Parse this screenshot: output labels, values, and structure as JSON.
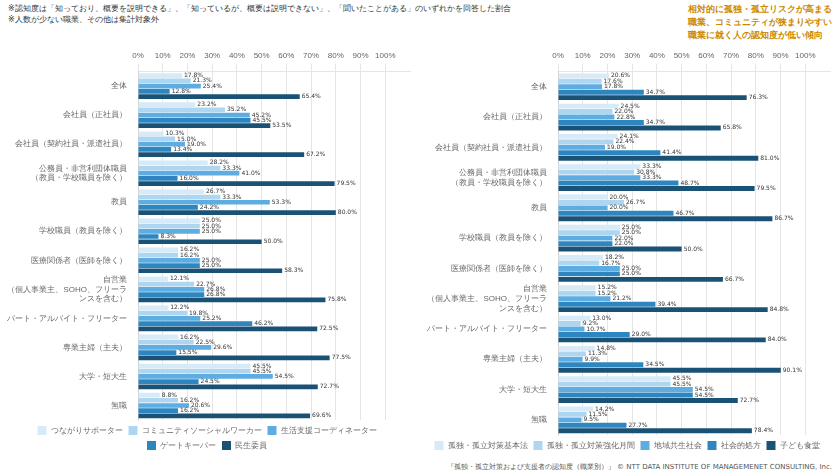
{
  "chart_data": [
    {
      "type": "bar",
      "orientation": "horizontal",
      "categories": [
        "全体",
        "会社員（正社員）",
        "会社員（契約社員・派遣社員）",
        "公務員・非営利団体職員（教員・学校職員を除く）",
        "教員",
        "学校職員（教員を除く）",
        "医療関係者（医師を除く）",
        "自営業（個人事業主、SOHO、フリーランスを含む）",
        "パート・アルバイト・フリーター",
        "専業主婦（主夫）",
        "大学・短大生",
        "無職"
      ],
      "series": [
        {
          "name": "つながりサポーター",
          "color": "#d6eaf8",
          "values": [
            17.8,
            23.2,
            10.3,
            28.2,
            26.7,
            25.0,
            16.2,
            12.1,
            12.2,
            16.2,
            45.5,
            8.8
          ],
          "value_labels": [
            "17.8%",
            "23.2%",
            "10.3%",
            "28.2%",
            "26.7%",
            "25.0%",
            "16.2%",
            "12.1%",
            "12.2%",
            "16.2%",
            "45.5%",
            "8.8%"
          ]
        },
        {
          "name": "コミュニティソーシャルワーカー",
          "color": "#aed6f1",
          "values": [
            21.3,
            35.2,
            15.0,
            33.3,
            33.3,
            25.0,
            16.2,
            22.7,
            19.8,
            22.5,
            45.5,
            16.2
          ],
          "value_labels": [
            "21.3%",
            "35.2%",
            "15.0%",
            "33.3%",
            "33.3%",
            "25.0%",
            "16.2%",
            "22.7%",
            "19.8%",
            "22.5%",
            "45.5%",
            "16.2%"
          ]
        },
        {
          "name": "生活支援コーディネーター",
          "color": "#5dade2",
          "values": [
            25.4,
            45.2,
            19.0,
            41.0,
            53.3,
            25.0,
            25.0,
            26.8,
            25.2,
            29.6,
            54.5,
            20.6
          ],
          "value_labels": [
            "25.4%",
            "45.2%",
            "19.0%",
            "41.0%",
            "53.3%",
            "25.0%",
            "25.0%",
            "26.8%",
            "25.2%",
            "29.6%",
            "54.5%",
            "20.6%"
          ]
        },
        {
          "name": "ゲートキーパー",
          "color": "#2e86c1",
          "values": [
            12.8,
            45.5,
            13.4,
            16.0,
            24.2,
            8.3,
            25.0,
            26.8,
            46.2,
            15.5,
            24.5,
            16.2
          ],
          "value_labels": [
            "12.8%",
            "45.5%",
            "13.4%",
            "16.0%",
            "24.2%",
            "8.3%",
            "25.0%",
            "26.8%",
            "46.2%",
            "15.5%",
            "24.5%",
            "16.2%"
          ]
        },
        {
          "name": "民生委員",
          "color": "#1a5276",
          "values": [
            65.4,
            53.5,
            67.2,
            79.5,
            80.0,
            50.0,
            58.3,
            75.8,
            72.5,
            77.5,
            72.7,
            69.6
          ],
          "value_labels": [
            "65.4%",
            "53.5%",
            "67.2%",
            "79.5%",
            "80.0%",
            "50.0%",
            "58.3%",
            "75.8%",
            "72.5%",
            "77.5%",
            "72.7%",
            "69.6%"
          ]
        }
      ],
      "xlim": [
        0,
        110
      ],
      "xticks": [
        {
          "value": 0,
          "label": "0%"
        },
        {
          "value": 10,
          "label": "10%"
        },
        {
          "value": 20,
          "label": "20%"
        },
        {
          "value": 30,
          "label": "30%"
        },
        {
          "value": 40,
          "label": "40%"
        },
        {
          "value": 50,
          "label": "50%"
        },
        {
          "value": 60,
          "label": "60%"
        },
        {
          "value": 70,
          "label": "70%"
        },
        {
          "value": 80,
          "label": "80%"
        },
        {
          "value": 90,
          "label": "90%"
        },
        {
          "value": 100,
          "label": "100%"
        }
      ],
      "grid": true,
      "legend": "bottom",
      "data_labels": true,
      "annotations": [
        "※認知度は「知っており、概要を説明できる」、「知っているが、概要は説明できない」、「聞いたことがある」のいずれかを回答した割合",
        "※人数が少ない職業、その他は集計対象外",
        "相対的に孤独・孤立リスクが高まる\n職業、コミュニティが狭まりやすい\n職業に就く人の認知度が低い傾向",
        "『孤独・孤立対策および支援者の認知度（職業別）』 © NTT DATA INSTITUTE OF MANAGEMENET CONSULTING, Inc."
      ]
    },
    {
      "type": "bar",
      "orientation": "horizontal",
      "categories": [
        "全体",
        "会社員（正社員）",
        "会社員（契約社員・派遣社員）",
        "公務員・非営利団体職員（教員・学校職員を除く）",
        "教員",
        "学校職員（教員を除く）",
        "医療関係者（医師を除く）",
        "自営業（個人事業主、SOHO、フリーランスを含む）",
        "パート・アルバイト・フリーター",
        "専業主婦（主夫）",
        "大学・短大生",
        "無職"
      ],
      "series": [
        {
          "name": "孤独・孤立対策基本法",
          "color": "#d6eaf8",
          "values": [
            20.6,
            24.5,
            24.1,
            33.3,
            20.0,
            25.0,
            18.2,
            15.2,
            13.0,
            14.8,
            45.5,
            14.2
          ],
          "value_labels": [
            "20.6%",
            "24.5%",
            "24.1%",
            "33.3%",
            "20.0%",
            "25.0%",
            "18.2%",
            "15.2%",
            "13.0%",
            "14.8%",
            "45.5%",
            "14.2%"
          ]
        },
        {
          "name": "孤独・孤立対策強化月間",
          "color": "#aed6f1",
          "values": [
            17.6,
            22.0,
            22.4,
            30.8,
            26.7,
            25.0,
            16.7,
            15.2,
            9.2,
            11.3,
            45.5,
            11.5
          ],
          "value_labels": [
            "17.6%",
            "22.0%",
            "22.4%",
            "30.8%",
            "26.7%",
            "25.0%",
            "16.7%",
            "15.2%",
            "9.2%",
            "11.3%",
            "45.5%",
            "11.5%"
          ]
        },
        {
          "name": "地域共生社会",
          "color": "#5dade2",
          "values": [
            17.8,
            22.8,
            19.0,
            33.3,
            20.0,
            22.0,
            25.0,
            21.2,
            10.7,
            9.9,
            54.5,
            9.5
          ],
          "value_labels": [
            "17.8%",
            "22.8%",
            "19.0%",
            "33.3%",
            "20.0%",
            "22.0%",
            "25.0%",
            "21.2%",
            "10.7%",
            "9.9%",
            "54.5%",
            "9.5%"
          ]
        },
        {
          "name": "社会的処方",
          "color": "#2e86c1",
          "values": [
            34.7,
            34.7,
            41.4,
            48.7,
            46.7,
            22.0,
            25.0,
            39.4,
            29.0,
            34.5,
            54.5,
            27.7
          ],
          "value_labels": [
            "34.7%",
            "34.7%",
            "41.4%",
            "48.7%",
            "46.7%",
            "22.0%",
            "25.0%",
            "39.4%",
            "29.0%",
            "34.5%",
            "54.5%",
            "27.7%"
          ]
        },
        {
          "name": "子ども食堂",
          "color": "#1a5276",
          "values": [
            76.3,
            65.8,
            81.0,
            79.5,
            86.7,
            50.0,
            66.7,
            84.8,
            84.0,
            90.1,
            72.7,
            78.4
          ],
          "value_labels": [
            "76.3%",
            "65.8%",
            "81.0%",
            "79.5%",
            "86.7%",
            "50.0%",
            "66.7%",
            "84.8%",
            "84.0%",
            "90.1%",
            "72.7%",
            "78.4%"
          ]
        }
      ],
      "xlim": [
        0,
        110
      ],
      "xticks": [
        {
          "value": 0,
          "label": "0%"
        },
        {
          "value": 10,
          "label": "10%"
        },
        {
          "value": 20,
          "label": "20%"
        },
        {
          "value": 30,
          "label": "30%"
        },
        {
          "value": 40,
          "label": "40%"
        },
        {
          "value": 50,
          "label": "50%"
        },
        {
          "value": 60,
          "label": "60%"
        },
        {
          "value": 70,
          "label": "70%"
        },
        {
          "value": 80,
          "label": "80%"
        },
        {
          "value": 90,
          "label": "90%"
        },
        {
          "value": 100,
          "label": "100%"
        }
      ],
      "grid": true,
      "legend": "bottom",
      "data_labels": true
    }
  ]
}
